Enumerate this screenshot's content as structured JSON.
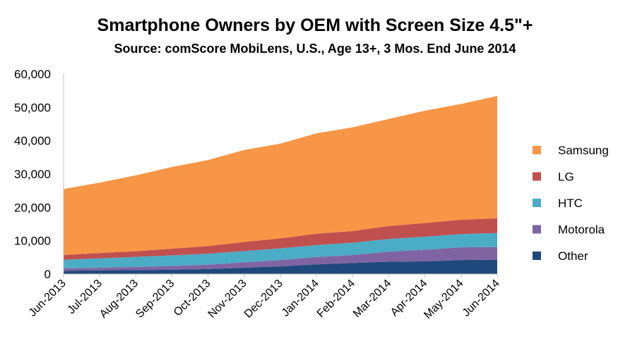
{
  "chart_data": {
    "type": "area",
    "stacked": true,
    "title": "Smartphone Owners by OEM with Screen Size 4.5\"+",
    "subtitle": "Source: comScore MobiLens, U.S., Age 13+, 3 Mos. End June 2014",
    "xlabel": "",
    "ylabel": "",
    "ylim": [
      0,
      60000
    ],
    "yticks": [
      "0",
      "10,000",
      "20,000",
      "30,000",
      "40,000",
      "50,000",
      "60,000"
    ],
    "ytick_values": [
      0,
      10000,
      20000,
      30000,
      40000,
      50000,
      60000
    ],
    "categories": [
      "Jun-2013",
      "Jul-2013",
      "Aug-2013",
      "Sep-2013",
      "Oct-2013",
      "Nov-2013",
      "Dec-2013",
      "Jan-2014",
      "Feb-2014",
      "Mar-2014",
      "Apr-2014",
      "May-2014",
      "Jun-2014"
    ],
    "legend_position": "right",
    "series": [
      {
        "name": "Other",
        "color": "#1F497D",
        "values": [
          1000,
          1100,
          1200,
          1300,
          1500,
          1900,
          2300,
          2900,
          3300,
          3700,
          3800,
          4200,
          4300
        ]
      },
      {
        "name": "Motorola",
        "color": "#8064A2",
        "values": [
          700,
          800,
          950,
          1100,
          1300,
          1600,
          1900,
          2200,
          2400,
          3000,
          3500,
          3800,
          3800
        ]
      },
      {
        "name": "HTC",
        "color": "#4BACC6",
        "values": [
          2600,
          2800,
          3000,
          3200,
          3300,
          3400,
          3500,
          3600,
          3700,
          3800,
          3900,
          4000,
          4200
        ]
      },
      {
        "name": "LG",
        "color": "#C0504D",
        "values": [
          1400,
          1600,
          1700,
          2000,
          2300,
          2700,
          3000,
          3400,
          3500,
          3900,
          4100,
          4300,
          4400
        ]
      },
      {
        "name": "Samsung",
        "color": "#F79646",
        "values": [
          19800,
          21100,
          22750,
          24500,
          25800,
          27600,
          28400,
          30100,
          31100,
          32100,
          33700,
          34700,
          36700
        ]
      }
    ],
    "legend_order": [
      "Samsung",
      "LG",
      "HTC",
      "Motorola",
      "Other"
    ]
  }
}
